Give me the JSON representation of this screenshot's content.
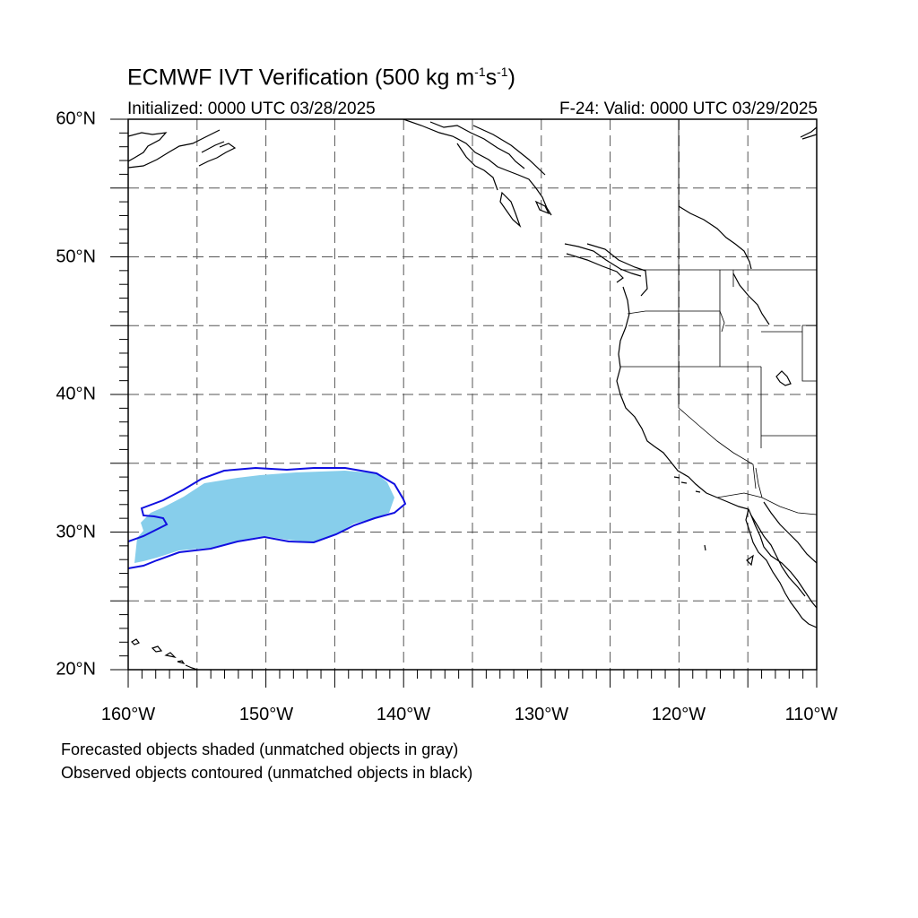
{
  "header": {
    "title_main": "ECMWF IVT Verification (500 kg m",
    "title_sup1": "-1",
    "title_mid": "s",
    "title_sup2": "-1",
    "title_end": ")",
    "initialized": "Initialized: 0000 UTC 03/28/2025",
    "valid": "F-24: Valid: 0000 UTC 03/29/2025"
  },
  "axes": {
    "lat_labels": [
      "60°N",
      "50°N",
      "40°N",
      "30°N",
      "20°N"
    ],
    "lon_labels": [
      "160°W",
      "150°W",
      "140°W",
      "130°W",
      "120°W",
      "110°W"
    ],
    "lat_range": [
      20,
      60
    ],
    "lon_range": [
      -160,
      -110
    ],
    "grid": "dashed every 5 degrees"
  },
  "legend": {
    "line1": "Forecasted objects shaded (unmatched objects in gray)",
    "line2": "Observed objects contoured (unmatched objects in black)"
  },
  "colors": {
    "forecast_fill": "#87ceeb",
    "observed_contour": "#1010e0",
    "coastline": "#000000",
    "grid": "#555555"
  }
}
